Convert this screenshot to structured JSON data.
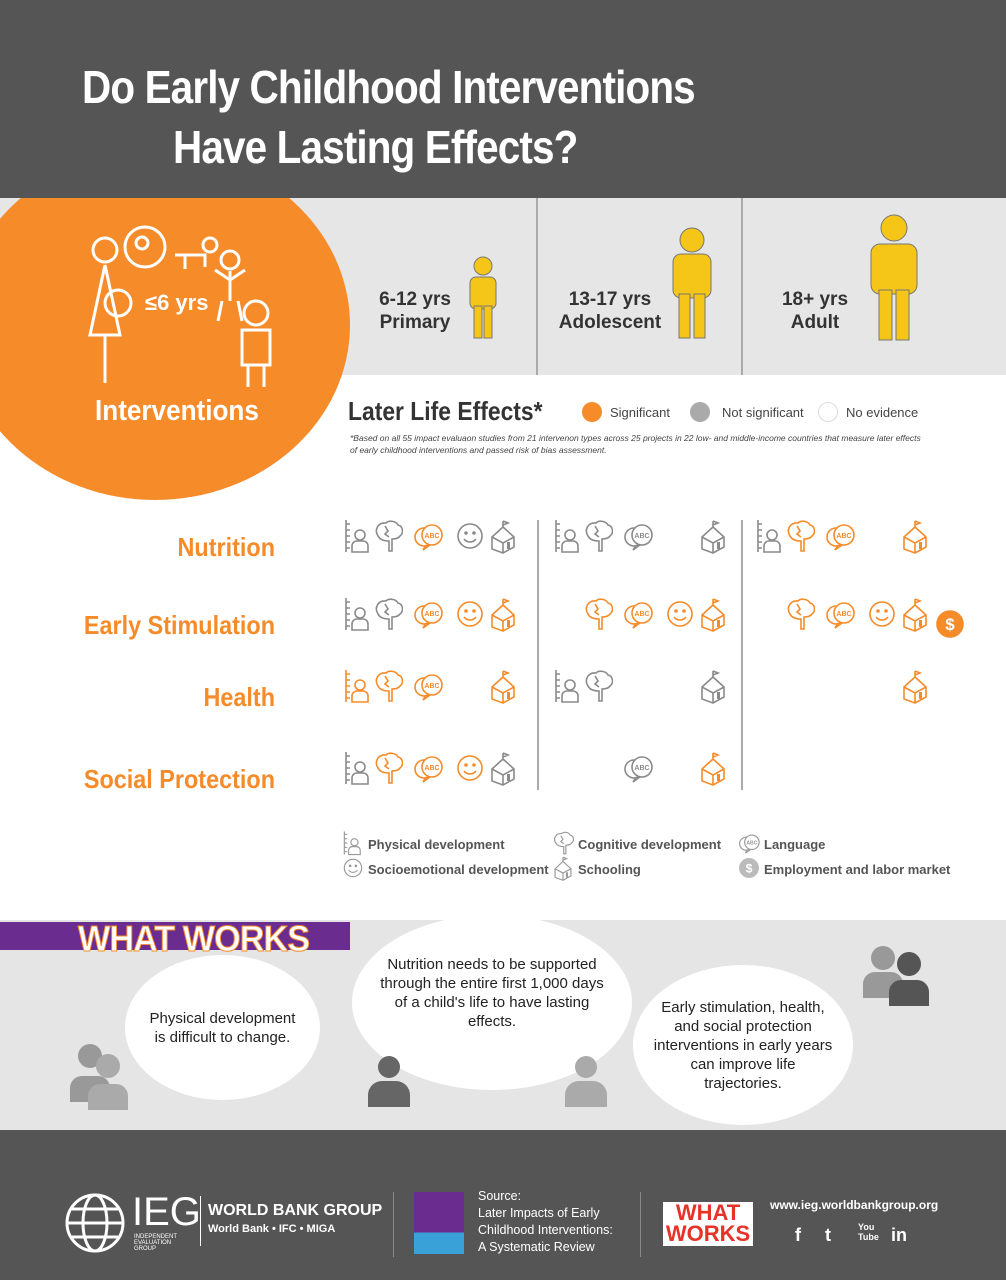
{
  "title": {
    "line1": "Do Early Childhood Interventions",
    "line2": "Have Lasting Effects?"
  },
  "ages": {
    "early": "≤6 yrs",
    "primary": {
      "range": "6-12 yrs",
      "label": "Primary"
    },
    "adolescent": {
      "range": "13-17 yrs",
      "label": "Adolescent"
    },
    "adult": {
      "range": "18+ yrs",
      "label": "Adult"
    }
  },
  "interventions_label": "Interventions",
  "effects": {
    "title": "Later Life Effects*",
    "legend": {
      "significant": "Significant",
      "not_significant": "Not significant",
      "no_evidence": "No evidence"
    },
    "footnote": "*Based on all 55 impact evaluaon studies from 21 intervenon types across 25 projects in 22 low- and middle-income countries that measure later effects of early childhood interventions and passed risk of bias assessment."
  },
  "colors": {
    "significant": "#f68b2a",
    "not_significant": "#8a8a8a",
    "accent": "#f68b2a"
  },
  "rows": [
    {
      "label": "Nutrition",
      "cells": [
        {
          "P": "g",
          "C": "g",
          "L": "o",
          "S": "g",
          "H": "g"
        },
        {
          "P": "g",
          "C": "g",
          "L": "g",
          "H": "g"
        },
        {
          "P": "g",
          "C": "o",
          "L": "o",
          "H": "o"
        }
      ]
    },
    {
      "label": "Early Stimulation",
      "cells": [
        {
          "P": "g",
          "C": "g",
          "L": "o",
          "S": "o",
          "H": "o"
        },
        {
          "C": "o",
          "L": "o",
          "S": "o",
          "H": "o"
        },
        {
          "C": "o",
          "L": "o",
          "S": "o",
          "H": "o",
          "E": "o"
        }
      ]
    },
    {
      "label": "Health",
      "cells": [
        {
          "P": "o",
          "C": "o",
          "L": "o",
          "H": "o"
        },
        {
          "P": "g",
          "C": "g",
          "H": "g"
        },
        {
          "H": "o"
        }
      ]
    },
    {
      "label": "Social Protection",
      "cells": [
        {
          "P": "g",
          "C": "o",
          "L": "o",
          "S": "o",
          "H": "g"
        },
        {
          "L": "g",
          "H": "o"
        },
        {}
      ]
    }
  ],
  "icon_legend": {
    "P": "Physical development",
    "C": "Cognitive development",
    "L": "Language",
    "S": "Socioemotional development",
    "H": "Schooling",
    "E": "Employment and labor market"
  },
  "what_works": {
    "heading": "WHAT WORKS",
    "quote1": "Physical development is difficult to change.",
    "quote2": "Nutrition needs to be supported through the entire first 1,000 days of a child's life to have lasting effects.",
    "quote3": "Early stimulation, health, and social protection interventions in early years can improve life trajectories."
  },
  "footer": {
    "ieg": "IEG",
    "ieg_sub": "Independent Evaluation Group",
    "wbg": "WORLD BANK GROUP",
    "wbg_sub": "World Bank • IFC • MIGA",
    "source_label": "Source:",
    "source_title": "Later Impacts of Early Childhood Interventions: A Systematic Review",
    "url": "www.ieg.worldbankgroup.org",
    "social": {
      "facebook": "f",
      "twitter": "t",
      "youtube": "You Tube",
      "linkedin": "in"
    }
  }
}
